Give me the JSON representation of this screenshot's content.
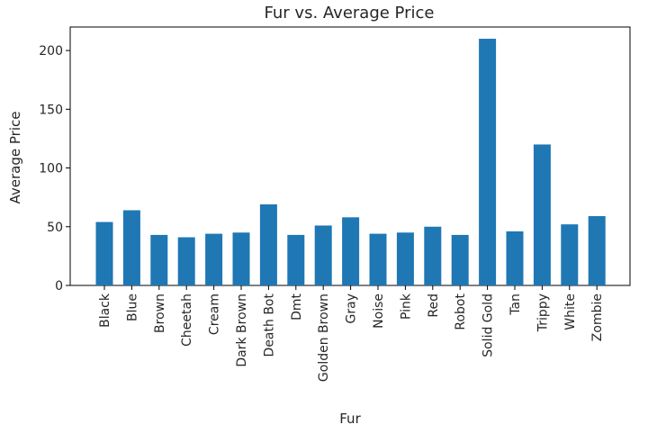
{
  "chart_data": {
    "type": "bar",
    "title": "Fur vs. Average Price",
    "xlabel": "Fur",
    "ylabel": "Average Price",
    "categories": [
      "Black",
      "Blue",
      "Brown",
      "Cheetah",
      "Cream",
      "Dark Brown",
      "Death Bot",
      "Dmt",
      "Golden Brown",
      "Gray",
      "Noise",
      "Pink",
      "Red",
      "Robot",
      "Solid Gold",
      "Tan",
      "Trippy",
      "White",
      "Zombie"
    ],
    "values": [
      54,
      64,
      43,
      41,
      44,
      45,
      69,
      43,
      51,
      58,
      44,
      45,
      50,
      43,
      210,
      46,
      120,
      52,
      59
    ],
    "ylim": [
      0,
      220
    ],
    "yticks": [
      0,
      50,
      100,
      150,
      200
    ],
    "grid": false,
    "bar_color": "#1f77b4"
  }
}
